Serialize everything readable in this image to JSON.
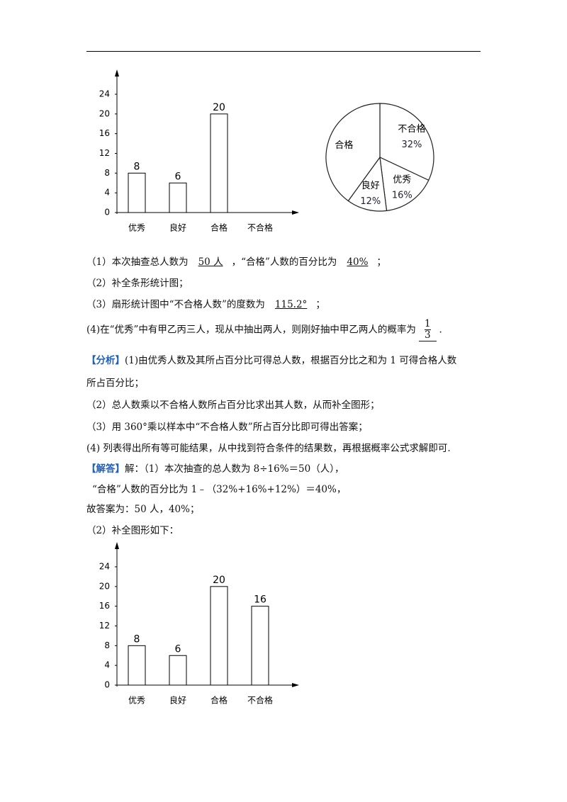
{
  "chart_data": [
    {
      "type": "bar",
      "categories": [
        "优秀",
        "良好",
        "合格",
        "不合格"
      ],
      "values": [
        8,
        6,
        20,
        null
      ],
      "color": "#ffffff",
      "ylim": [
        0,
        24
      ],
      "yticks": [
        0,
        4,
        8,
        12,
        16,
        20,
        24
      ]
    },
    {
      "type": "pie",
      "categories": [
        "不合格",
        "优秀",
        "良好",
        "合格"
      ],
      "values": [
        32,
        16,
        12,
        40
      ],
      "value_labels": [
        "32%",
        "16%",
        "12%",
        null
      ],
      "color": "#ffffff"
    },
    {
      "type": "bar",
      "categories": [
        "优秀",
        "良好",
        "合格",
        "不合格"
      ],
      "values": [
        8,
        6,
        20,
        16
      ],
      "color": "#ffffff",
      "ylim": [
        0,
        24
      ],
      "yticks": [
        0,
        4,
        8,
        12,
        16,
        20,
        24
      ]
    }
  ],
  "questions": [
    {
      "parts": [
        "（1）本次抽查总人数为",
        "，“合格”人数的百分比为",
        "；"
      ],
      "answers": [
        "50 人",
        "40%"
      ]
    },
    {
      "parts": [
        "（2）补全条形统计图；"
      ]
    },
    {
      "parts": [
        "（3）扇形统计图中“不合格人数”的度数为",
        "；"
      ],
      "answers": [
        "115.2°"
      ]
    },
    {
      "parts": [
        "(4)在“优秀”中有甲乙丙三人，现从中抽出两人，则刚好抽中甲乙两人的概率为",
        "."
      ],
      "fraction": {
        "numerator": "1",
        "denominator": "3"
      }
    }
  ],
  "analysis": {
    "tag": "【分析】",
    "lines": [
      "(1)由优秀人数及其所占百分比可得总人数，根据百分比之和为 1 可得合格人数",
      "所占百分比；",
      "（2）总人数乘以不合格人数所占百分比求出其人数，从而补全图形；",
      "（3）用 360°乘以样本中“不合格人数”所占百分比即可得出答案；",
      "(4) 列表得出所有等可能结果，从中找到符合条件的结果数，再根据概率公式求解即可."
    ]
  },
  "solution": {
    "tag": "【解答】",
    "lines": [
      "解：（1）本次抽查的总人数为 8÷16%＝50（人），",
      "“合格”人数的百分比为 1﹣（32%+16%+12%）＝40%，",
      "故答案为：50 人，40%；",
      "（2）补全图形如下："
    ]
  }
}
